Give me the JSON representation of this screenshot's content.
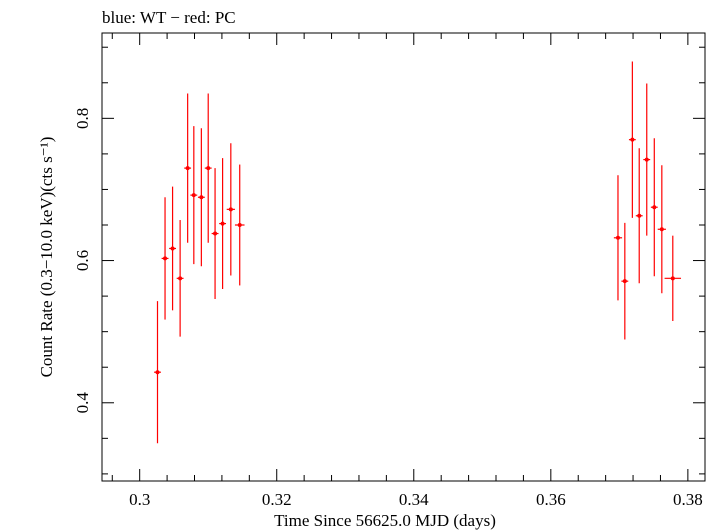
{
  "chart_data": {
    "type": "scatter",
    "title": "blue: WT − red: PC",
    "xlabel": "Time Since 56625.0 MJD (days)",
    "ylabel": "Count Rate (0.3−10.0 keV)(cts s⁻¹)",
    "xlim": [
      0.2945,
      0.3825
    ],
    "ylim": [
      0.29,
      0.92
    ],
    "x_ticks": [
      0.3,
      0.32,
      0.34,
      0.36,
      0.38
    ],
    "x_tick_labels": [
      "0.3",
      "0.32",
      "0.34",
      "0.36",
      "0.38"
    ],
    "y_ticks": [
      0.4,
      0.6,
      0.8
    ],
    "y_tick_labels": [
      "0.4",
      "0.6",
      "0.8"
    ],
    "grid": false,
    "series": [
      {
        "name": "PC",
        "color": "#ff0000",
        "points": [
          {
            "x": 0.3026,
            "xerr": 0.0005,
            "y": 0.443,
            "yerr": 0.1
          },
          {
            "x": 0.3037,
            "xerr": 0.0005,
            "y": 0.603,
            "yerr": 0.086
          },
          {
            "x": 0.3048,
            "xerr": 0.0005,
            "y": 0.617,
            "yerr": 0.087
          },
          {
            "x": 0.3059,
            "xerr": 0.0005,
            "y": 0.575,
            "yerr": 0.082
          },
          {
            "x": 0.307,
            "xerr": 0.0005,
            "y": 0.73,
            "yerr": 0.105
          },
          {
            "x": 0.3079,
            "xerr": 0.0005,
            "y": 0.692,
            "yerr": 0.097
          },
          {
            "x": 0.309,
            "xerr": 0.0005,
            "y": 0.689,
            "yerr": 0.097
          },
          {
            "x": 0.31,
            "xerr": 0.0005,
            "y": 0.73,
            "yerr": 0.105
          },
          {
            "x": 0.311,
            "xerr": 0.0005,
            "y": 0.638,
            "yerr": 0.092
          },
          {
            "x": 0.3121,
            "xerr": 0.0005,
            "y": 0.652,
            "yerr": 0.092
          },
          {
            "x": 0.3133,
            "xerr": 0.0006,
            "y": 0.672,
            "yerr": 0.093
          },
          {
            "x": 0.3146,
            "xerr": 0.0007,
            "y": 0.65,
            "yerr": 0.085
          },
          {
            "x": 0.3698,
            "xerr": 0.0006,
            "y": 0.632,
            "yerr": 0.088
          },
          {
            "x": 0.3708,
            "xerr": 0.0005,
            "y": 0.571,
            "yerr": 0.082
          },
          {
            "x": 0.3719,
            "xerr": 0.0005,
            "y": 0.77,
            "yerr": 0.11
          },
          {
            "x": 0.3729,
            "xerr": 0.0005,
            "y": 0.663,
            "yerr": 0.095
          },
          {
            "x": 0.374,
            "xerr": 0.0005,
            "y": 0.742,
            "yerr": 0.107
          },
          {
            "x": 0.3751,
            "xerr": 0.0005,
            "y": 0.675,
            "yerr": 0.097
          },
          {
            "x": 0.3762,
            "xerr": 0.0006,
            "y": 0.644,
            "yerr": 0.09
          },
          {
            "x": 0.3778,
            "xerr": 0.0012,
            "y": 0.575,
            "yerr": 0.06
          }
        ]
      }
    ]
  }
}
